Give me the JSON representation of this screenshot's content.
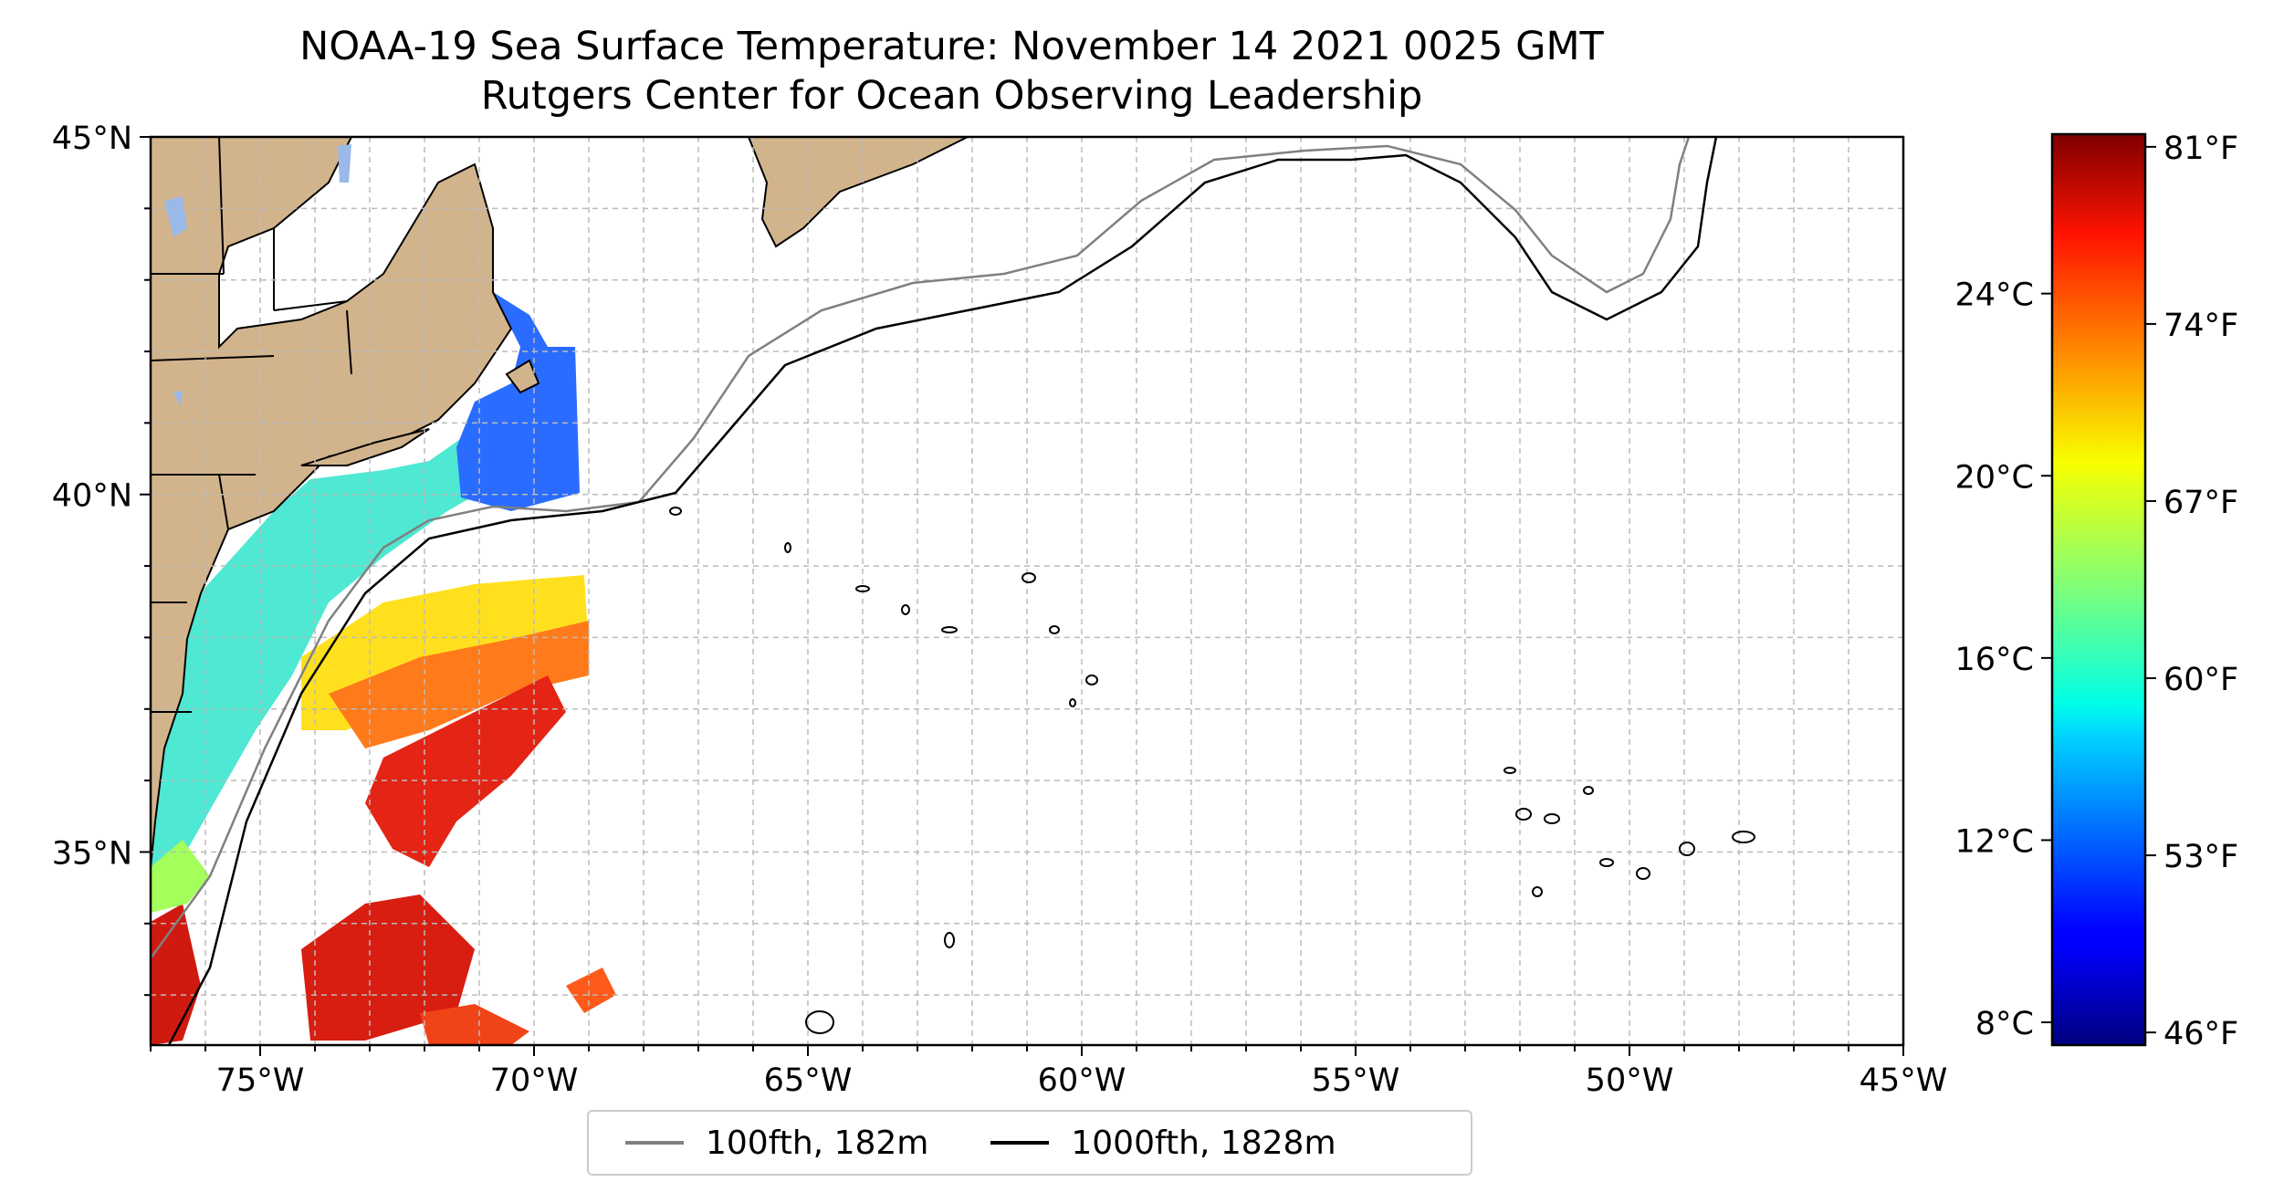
{
  "title": {
    "line1": "NOAA-19 Sea Surface Temperature: November 14 2021 0025 GMT",
    "line2": "Rutgers Center for Ocean Observing Leadership"
  },
  "map": {
    "projection": "PlateCarree",
    "lon_range": [
      -77,
      -45
    ],
    "lat_range": [
      32.3,
      45
    ],
    "lon_ticks": [
      {
        "value": -75,
        "label": "75°W"
      },
      {
        "value": -70,
        "label": "70°W"
      },
      {
        "value": -65,
        "label": "65°W"
      },
      {
        "value": -60,
        "label": "60°W"
      },
      {
        "value": -55,
        "label": "55°W"
      },
      {
        "value": -50,
        "label": "50°W"
      },
      {
        "value": -45,
        "label": "45°W"
      }
    ],
    "lat_ticks": [
      {
        "value": 45,
        "label": "45°N"
      },
      {
        "value": 40,
        "label": "40°N"
      },
      {
        "value": 35,
        "label": "35°N"
      }
    ],
    "gridlines": "dashed, every 1° longitude and 1° latitude",
    "land_color": "#d2b48c",
    "water_color": "#ffffff",
    "lake_color": "#9ab8e8",
    "grid_color": "#bbbbbb",
    "data_swath": "sea surface temperature over western side (approx. 77°W–69°W)"
  },
  "colorbar": {
    "colormap": "jet",
    "range_c": [
      7.5,
      27.5
    ],
    "celsius_ticks": [
      {
        "value": 8,
        "label": "8°C"
      },
      {
        "value": 12,
        "label": "12°C"
      },
      {
        "value": 16,
        "label": "16°C"
      },
      {
        "value": 20,
        "label": "20°C"
      },
      {
        "value": 24,
        "label": "24°C"
      }
    ],
    "fahrenheit_ticks": [
      {
        "value": 46,
        "label": "46°F"
      },
      {
        "value": 53,
        "label": "53°F"
      },
      {
        "value": 60,
        "label": "60°F"
      },
      {
        "value": 67,
        "label": "67°F"
      },
      {
        "value": 74,
        "label": "74°F"
      },
      {
        "value": 81,
        "label": "81°F"
      }
    ]
  },
  "legend": {
    "entries": [
      {
        "label": "100fth, 182m",
        "color": "#808080"
      },
      {
        "label": "1000fth, 1828m",
        "color": "#000000"
      }
    ]
  }
}
